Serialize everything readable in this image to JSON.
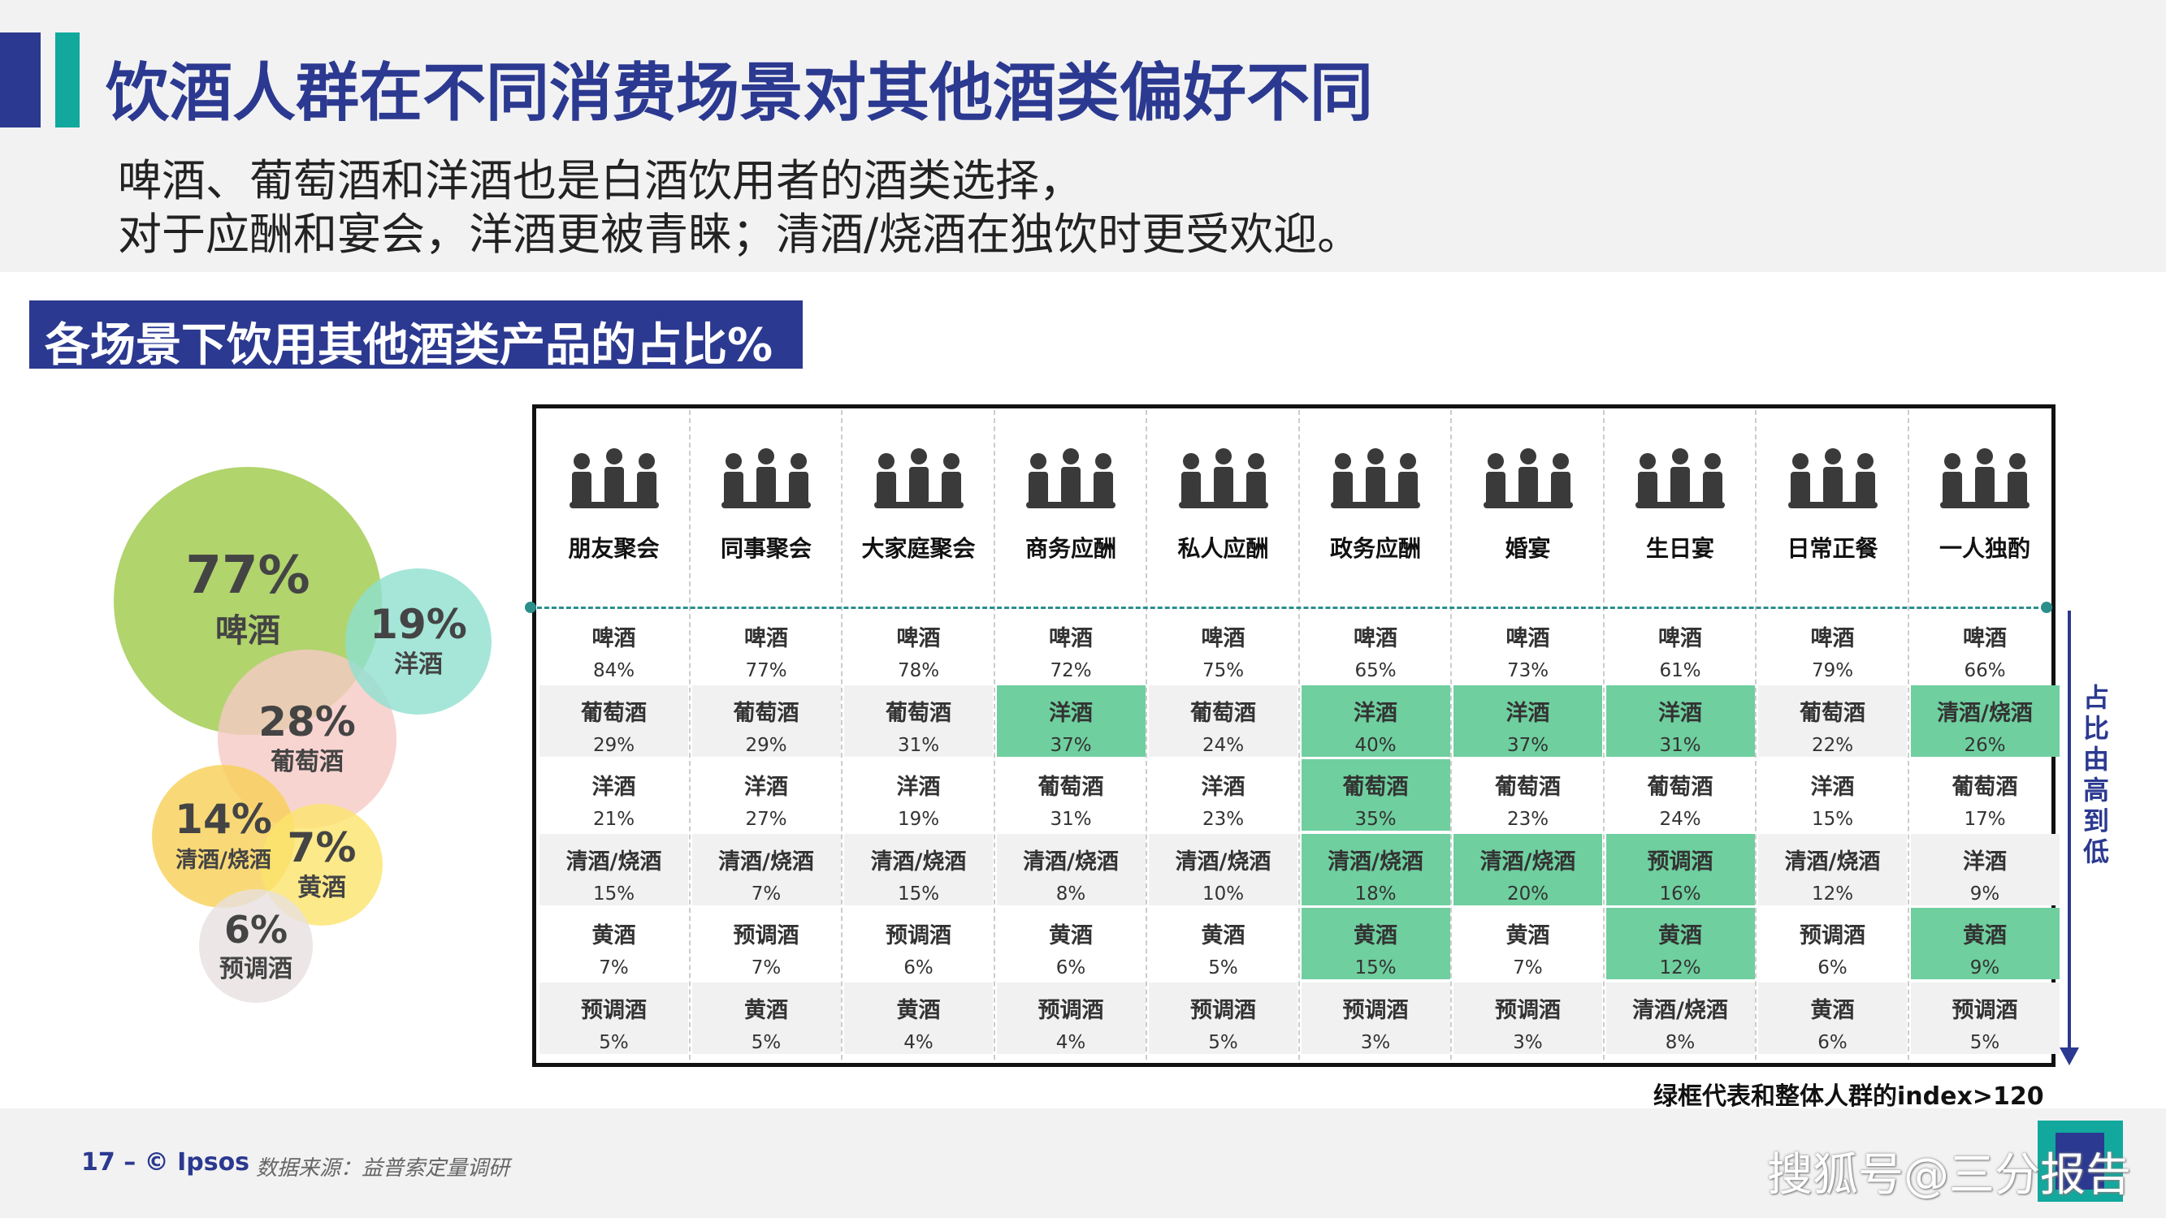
{
  "title": "饮酒人群在不同消费场景对其他酒类偏好不同",
  "subtitle_lines": [
    "啤酒、葡萄酒和洋酒也是白酒饮用者的酒类选择，",
    "对于应酬和宴会，洋酒更被青睐；清酒/烧酒在独饮时更受欢迎。"
  ],
  "section_title": "各场景下饮用其他酒类产品的占比%",
  "chart_data": [
    {
      "type": "bubble",
      "items": [
        {
          "label": "啤酒",
          "value": 77,
          "value_text": "77%",
          "color": "#a9cf5d"
        },
        {
          "label": "洋酒",
          "value": 19,
          "value_text": "19%",
          "color": "#8fe0cf"
        },
        {
          "label": "葡萄酒",
          "value": 28,
          "value_text": "28%",
          "color": "#f6c9c4"
        },
        {
          "label": "清酒/烧酒",
          "value": 14,
          "value_text": "14%",
          "color": "#f7cf55"
        },
        {
          "label": "黄酒",
          "value": 7,
          "value_text": "7%",
          "color": "#fbe36c"
        },
        {
          "label": "预调酒",
          "value": 6,
          "value_text": "6%",
          "color": "#e7e0e0"
        }
      ]
    },
    {
      "type": "table",
      "scenes": [
        {
          "name": "朋友聚会",
          "icon": "friends-gathering-icon",
          "rows": [
            {
              "drink": "啤酒",
              "pct": "84%",
              "hl": false
            },
            {
              "drink": "葡萄酒",
              "pct": "29%",
              "hl": false
            },
            {
              "drink": "洋酒",
              "pct": "21%",
              "hl": false
            },
            {
              "drink": "清酒/烧酒",
              "pct": "15%",
              "hl": false
            },
            {
              "drink": "黄酒",
              "pct": "7%",
              "hl": false
            },
            {
              "drink": "预调酒",
              "pct": "5%",
              "hl": false
            }
          ]
        },
        {
          "name": "同事聚会",
          "icon": "colleagues-gathering-icon",
          "rows": [
            {
              "drink": "啤酒",
              "pct": "77%",
              "hl": false
            },
            {
              "drink": "葡萄酒",
              "pct": "29%",
              "hl": false
            },
            {
              "drink": "洋酒",
              "pct": "27%",
              "hl": false
            },
            {
              "drink": "清酒/烧酒",
              "pct": "7%",
              "hl": false
            },
            {
              "drink": "预调酒",
              "pct": "7%",
              "hl": false
            },
            {
              "drink": "黄酒",
              "pct": "5%",
              "hl": false
            }
          ]
        },
        {
          "name": "大家庭聚会",
          "icon": "family-gathering-icon",
          "rows": [
            {
              "drink": "啤酒",
              "pct": "78%",
              "hl": false
            },
            {
              "drink": "葡萄酒",
              "pct": "31%",
              "hl": false
            },
            {
              "drink": "洋酒",
              "pct": "19%",
              "hl": false
            },
            {
              "drink": "清酒/烧酒",
              "pct": "15%",
              "hl": false
            },
            {
              "drink": "预调酒",
              "pct": "6%",
              "hl": false
            },
            {
              "drink": "黄酒",
              "pct": "4%",
              "hl": false
            }
          ]
        },
        {
          "name": "商务应酬",
          "icon": "business-meeting-icon",
          "rows": [
            {
              "drink": "啤酒",
              "pct": "72%",
              "hl": false
            },
            {
              "drink": "洋酒",
              "pct": "37%",
              "hl": true
            },
            {
              "drink": "葡萄酒",
              "pct": "31%",
              "hl": false
            },
            {
              "drink": "清酒/烧酒",
              "pct": "8%",
              "hl": false
            },
            {
              "drink": "黄酒",
              "pct": "6%",
              "hl": false
            },
            {
              "drink": "预调酒",
              "pct": "4%",
              "hl": false
            }
          ]
        },
        {
          "name": "私人应酬",
          "icon": "private-social-icon",
          "rows": [
            {
              "drink": "啤酒",
              "pct": "75%",
              "hl": false
            },
            {
              "drink": "葡萄酒",
              "pct": "24%",
              "hl": false
            },
            {
              "drink": "洋酒",
              "pct": "23%",
              "hl": false
            },
            {
              "drink": "清酒/烧酒",
              "pct": "10%",
              "hl": false
            },
            {
              "drink": "黄酒",
              "pct": "5%",
              "hl": false
            },
            {
              "drink": "预调酒",
              "pct": "5%",
              "hl": false
            }
          ]
        },
        {
          "name": "政务应酬",
          "icon": "government-meeting-icon",
          "rows": [
            {
              "drink": "啤酒",
              "pct": "65%",
              "hl": false
            },
            {
              "drink": "洋酒",
              "pct": "40%",
              "hl": true
            },
            {
              "drink": "葡萄酒",
              "pct": "35%",
              "hl": true
            },
            {
              "drink": "清酒/烧酒",
              "pct": "18%",
              "hl": true
            },
            {
              "drink": "黄酒",
              "pct": "15%",
              "hl": true
            },
            {
              "drink": "预调酒",
              "pct": "3%",
              "hl": false
            }
          ]
        },
        {
          "name": "婚宴",
          "icon": "wedding-icon",
          "rows": [
            {
              "drink": "啤酒",
              "pct": "73%",
              "hl": false
            },
            {
              "drink": "洋酒",
              "pct": "37%",
              "hl": true
            },
            {
              "drink": "葡萄酒",
              "pct": "23%",
              "hl": false
            },
            {
              "drink": "清酒/烧酒",
              "pct": "20%",
              "hl": true
            },
            {
              "drink": "黄酒",
              "pct": "7%",
              "hl": false
            },
            {
              "drink": "预调酒",
              "pct": "3%",
              "hl": false
            }
          ]
        },
        {
          "name": "生日宴",
          "icon": "birthday-party-icon",
          "rows": [
            {
              "drink": "啤酒",
              "pct": "61%",
              "hl": false
            },
            {
              "drink": "洋酒",
              "pct": "31%",
              "hl": true
            },
            {
              "drink": "葡萄酒",
              "pct": "24%",
              "hl": false
            },
            {
              "drink": "预调酒",
              "pct": "16%",
              "hl": true
            },
            {
              "drink": "黄酒",
              "pct": "12%",
              "hl": true
            },
            {
              "drink": "清酒/烧酒",
              "pct": "8%",
              "hl": false
            }
          ]
        },
        {
          "name": "日常正餐",
          "icon": "daily-meal-icon",
          "rows": [
            {
              "drink": "啤酒",
              "pct": "79%",
              "hl": false
            },
            {
              "drink": "葡萄酒",
              "pct": "22%",
              "hl": false
            },
            {
              "drink": "洋酒",
              "pct": "15%",
              "hl": false
            },
            {
              "drink": "清酒/烧酒",
              "pct": "12%",
              "hl": false
            },
            {
              "drink": "预调酒",
              "pct": "6%",
              "hl": false
            },
            {
              "drink": "黄酒",
              "pct": "6%",
              "hl": false
            }
          ]
        },
        {
          "name": "一人独酌",
          "icon": "drinking-alone-icon",
          "rows": [
            {
              "drink": "啤酒",
              "pct": "66%",
              "hl": false
            },
            {
              "drink": "清酒/烧酒",
              "pct": "26%",
              "hl": true
            },
            {
              "drink": "葡萄酒",
              "pct": "17%",
              "hl": false
            },
            {
              "drink": "洋酒",
              "pct": "9%",
              "hl": false
            },
            {
              "drink": "黄酒",
              "pct": "9%",
              "hl": true
            },
            {
              "drink": "预调酒",
              "pct": "5%",
              "hl": false
            }
          ]
        }
      ],
      "highlight_color": "#6fcf9f"
    }
  ],
  "side_label": "占比由高到低",
  "note": "绿框代表和整体人群的index>120",
  "footer": {
    "page": "17 –  © Ipsos",
    "source": "数据来源：益普索定量调研"
  },
  "watermark": "搜狐号@三分报告",
  "colors": {
    "primary": "#2b3990",
    "teal": "#12a89d"
  }
}
